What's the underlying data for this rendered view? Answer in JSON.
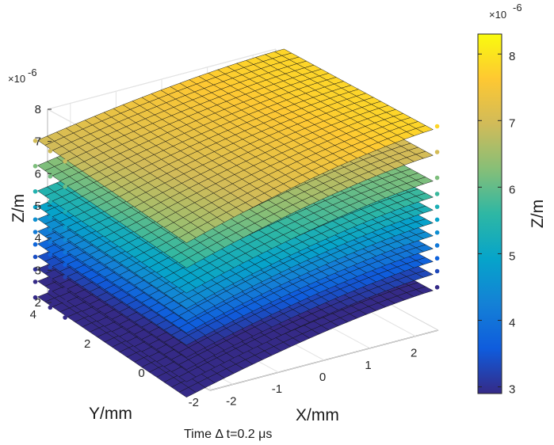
{
  "chart_data": {
    "type": "surface3d",
    "xlabel": "X/mm",
    "ylabel": "Y/mm",
    "zlabel": "Z/m",
    "caption": "Time Δ t=0.2 μs",
    "xlim": [
      -2.5,
      2.5
    ],
    "ylim": [
      -2,
      4
    ],
    "zlim": [
      2,
      8
    ],
    "z_multiplier_label": "×10",
    "z_multiplier_exponent": "-6",
    "xticks": [
      "-2",
      "-1",
      "0",
      "1",
      "2"
    ],
    "yticks": [
      "-2",
      "0",
      "2",
      "4"
    ],
    "zticks": [
      "2",
      "3",
      "4",
      "5",
      "6",
      "7",
      "8"
    ],
    "colorbar": {
      "label": "Z/m",
      "range": [
        2.9,
        8.3
      ],
      "ticks": [
        "3",
        "4",
        "5",
        "6",
        "7",
        "8"
      ],
      "multiplier_label": "×10",
      "multiplier_exponent": "-6",
      "colormap": "parula"
    },
    "surface_layers_zpeak": [
      2.8,
      3.3,
      3.7,
      4.1,
      4.5,
      4.9,
      5.3,
      5.7,
      6.2,
      7.0,
      7.8
    ]
  }
}
